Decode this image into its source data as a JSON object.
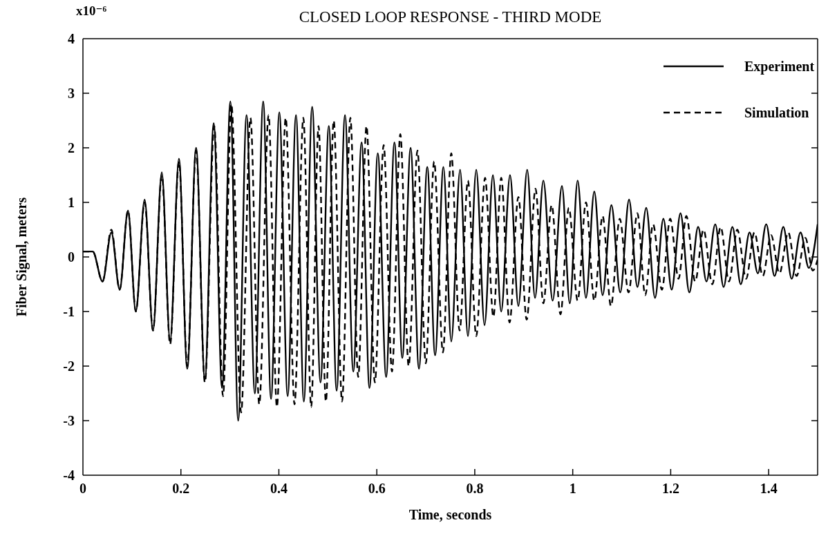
{
  "chart_data": {
    "type": "line",
    "title": "CLOSED LOOP RESPONSE - THIRD MODE",
    "xlabel": "Time, seconds",
    "ylabel": "Fiber Signal, meters",
    "annotations": [
      "x10⁻⁶"
    ],
    "xlim": [
      0,
      1.5
    ],
    "xticks": [
      0,
      0.2,
      0.4,
      0.6,
      0.8,
      1,
      1.2,
      1.4
    ],
    "ylim": [
      -4,
      4
    ],
    "yticks": [
      -4,
      -3,
      -2,
      -1,
      0,
      1,
      2,
      3,
      4
    ],
    "legend": "top right",
    "series": [
      {
        "name": "Experiment",
        "color": "#000000",
        "line_style": "solid",
        "x": [
          0,
          0.02,
          0.04,
          0.058,
          0.075,
          0.092,
          0.108,
          0.126,
          0.143,
          0.161,
          0.178,
          0.196,
          0.213,
          0.231,
          0.249,
          0.267,
          0.284,
          0.301,
          0.317,
          0.334,
          0.351,
          0.368,
          0.384,
          0.401,
          0.418,
          0.435,
          0.451,
          0.468,
          0.485,
          0.502,
          0.518,
          0.535,
          0.552,
          0.569,
          0.585,
          0.602,
          0.619,
          0.636,
          0.652,
          0.669,
          0.686,
          0.703,
          0.719,
          0.736,
          0.752,
          0.77,
          0.786,
          0.803,
          0.82,
          0.837,
          0.854,
          0.872,
          0.889,
          0.907,
          0.923,
          0.94,
          0.959,
          0.978,
          0.994,
          1.01,
          1.027,
          1.044,
          1.061,
          1.079,
          1.097,
          1.115,
          1.132,
          1.15,
          1.168,
          1.185,
          1.202,
          1.22,
          1.238,
          1.256,
          1.273,
          1.291,
          1.308,
          1.326,
          1.343,
          1.361,
          1.378,
          1.395,
          1.412,
          1.43,
          1.447,
          1.465,
          1.482,
          1.5
        ],
        "values": [
          0.1,
          0.1,
          -0.45,
          0.45,
          -0.6,
          0.85,
          -1.0,
          1.05,
          -1.35,
          1.55,
          -1.55,
          1.8,
          -2.05,
          2.0,
          -2.25,
          2.45,
          -2.4,
          2.85,
          -3.0,
          2.6,
          -2.5,
          2.85,
          -2.6,
          2.65,
          -2.55,
          2.6,
          -2.65,
          2.75,
          -2.3,
          2.4,
          -2.45,
          2.6,
          -2.1,
          2.1,
          -2.4,
          1.9,
          -2.2,
          2.1,
          -1.85,
          2.0,
          -2.05,
          1.65,
          -1.8,
          1.65,
          -1.55,
          1.6,
          -1.45,
          1.6,
          -1.25,
          1.5,
          -1.0,
          1.5,
          -0.9,
          1.6,
          -0.75,
          1.4,
          -0.8,
          1.3,
          -0.85,
          1.4,
          -0.75,
          1.2,
          -0.7,
          0.95,
          -0.65,
          1.05,
          -0.55,
          0.9,
          -0.75,
          0.7,
          -0.6,
          0.8,
          -0.65,
          0.55,
          -0.45,
          0.6,
          -0.55,
          0.55,
          -0.5,
          0.45,
          -0.3,
          0.6,
          -0.35,
          0.55,
          -0.4,
          0.45,
          -0.2,
          0.6
        ]
      },
      {
        "name": "Simulation",
        "color": "#000000",
        "line_style": "dashed",
        "x": [
          0,
          0.02,
          0.04,
          0.058,
          0.075,
          0.092,
          0.108,
          0.126,
          0.143,
          0.161,
          0.178,
          0.196,
          0.213,
          0.231,
          0.249,
          0.268,
          0.286,
          0.303,
          0.323,
          0.342,
          0.36,
          0.379,
          0.396,
          0.414,
          0.432,
          0.45,
          0.466,
          0.481,
          0.496,
          0.512,
          0.529,
          0.546,
          0.562,
          0.579,
          0.596,
          0.614,
          0.631,
          0.648,
          0.665,
          0.683,
          0.7,
          0.717,
          0.735,
          0.752,
          0.769,
          0.786,
          0.803,
          0.821,
          0.838,
          0.854,
          0.871,
          0.889,
          0.906,
          0.924,
          0.94,
          0.957,
          0.975,
          0.992,
          1.01,
          1.027,
          1.044,
          1.061,
          1.078,
          1.096,
          1.114,
          1.132,
          1.148,
          1.164,
          1.182,
          1.199,
          1.216,
          1.232,
          1.25,
          1.267,
          1.285,
          1.302,
          1.319,
          1.336,
          1.354,
          1.371,
          1.388,
          1.405,
          1.422,
          1.44,
          1.457,
          1.475,
          1.49,
          1.5
        ],
        "values": [
          0.1,
          0.1,
          -0.45,
          0.5,
          -0.6,
          0.85,
          -1.0,
          1.0,
          -1.35,
          1.5,
          -1.6,
          1.75,
          -2.0,
          1.95,
          -2.3,
          2.4,
          -2.55,
          2.8,
          -2.85,
          2.55,
          -2.7,
          2.6,
          -2.75,
          2.55,
          -2.7,
          2.55,
          -2.75,
          2.4,
          -2.65,
          2.5,
          -2.65,
          2.55,
          -2.2,
          2.4,
          -2.3,
          2.05,
          -2.1,
          2.25,
          -2.0,
          1.95,
          -1.95,
          1.75,
          -1.75,
          1.9,
          -1.35,
          1.4,
          -1.45,
          1.45,
          -1.1,
          1.45,
          -1.2,
          1.1,
          -1.15,
          1.25,
          -0.85,
          0.95,
          -1.05,
          0.9,
          -0.8,
          1.0,
          -0.8,
          0.75,
          -0.9,
          0.7,
          -0.65,
          0.8,
          -0.7,
          0.6,
          -0.6,
          0.7,
          -0.4,
          0.75,
          -0.45,
          0.5,
          -0.5,
          0.55,
          -0.45,
          0.5,
          -0.4,
          0.45,
          -0.35,
          0.4,
          -0.3,
          0.45,
          -0.35,
          0.35,
          -0.25,
          -0.05
        ]
      }
    ]
  }
}
